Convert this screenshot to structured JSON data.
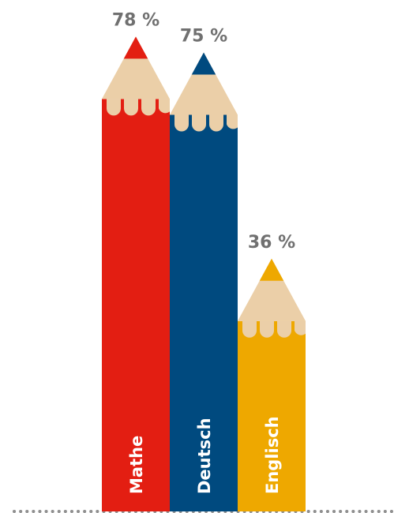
{
  "chart_data": {
    "type": "bar",
    "categories": [
      "Mathe",
      "Deutsch",
      "Englisch"
    ],
    "values": [
      78,
      75,
      36
    ],
    "value_labels": [
      "78 %",
      "75 %",
      "36 %"
    ],
    "unit": "%",
    "colors": [
      "#e31e12",
      "#004a7f",
      "#eea800"
    ],
    "wood_color": "#ebcfa8",
    "label_color": "#707070",
    "baseline": "dotted",
    "ylim": [
      0,
      100
    ]
  }
}
